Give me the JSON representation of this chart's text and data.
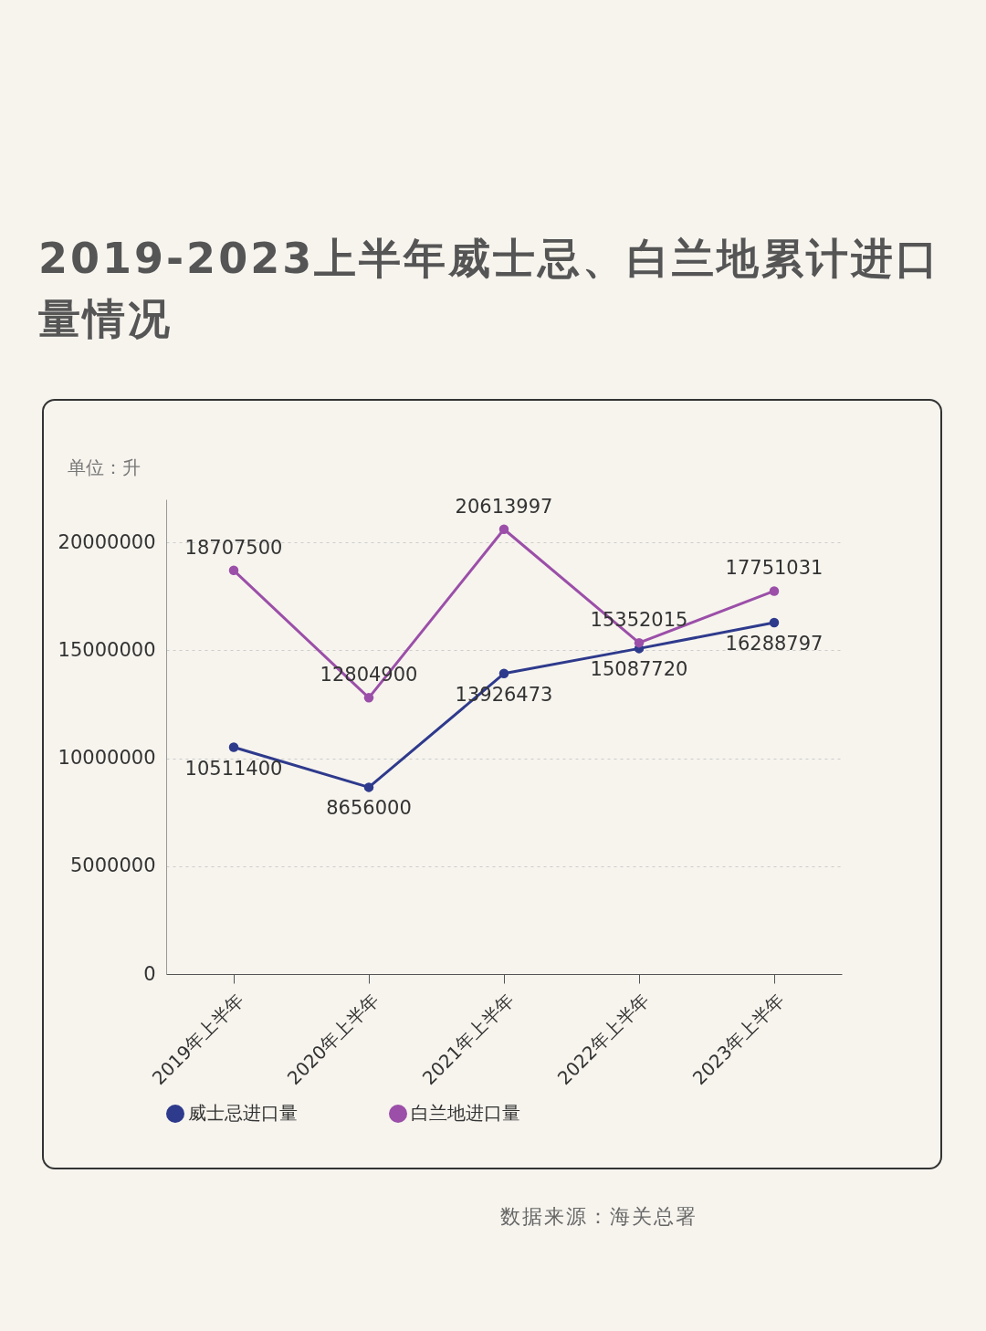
{
  "chart_data": {
    "type": "line",
    "title": "2019-2023上半年威士忌、白兰地累计进口量情况",
    "annotations": [
      "单位：升",
      "数据来源：海关总署"
    ],
    "categories": [
      "2019年上半年",
      "2020年上半年",
      "2021年上半年",
      "2022年上半年",
      "2023年上半年"
    ],
    "series": [
      {
        "name": "威士忌进口量",
        "color": "#2e3a8c",
        "values": [
          10511400,
          8656000,
          13926473,
          15087720,
          16288797
        ]
      },
      {
        "name": "白兰地进口量",
        "color": "#9b4fa8",
        "values": [
          18707500,
          12804900,
          20613997,
          15352015,
          17751031
        ]
      }
    ],
    "ylim": [
      0,
      22000000
    ],
    "yticks": [
      0,
      5000000,
      10000000,
      15000000,
      20000000
    ],
    "grid": "y",
    "legend": "bottom",
    "marker": "circle",
    "data_labels": true
  }
}
